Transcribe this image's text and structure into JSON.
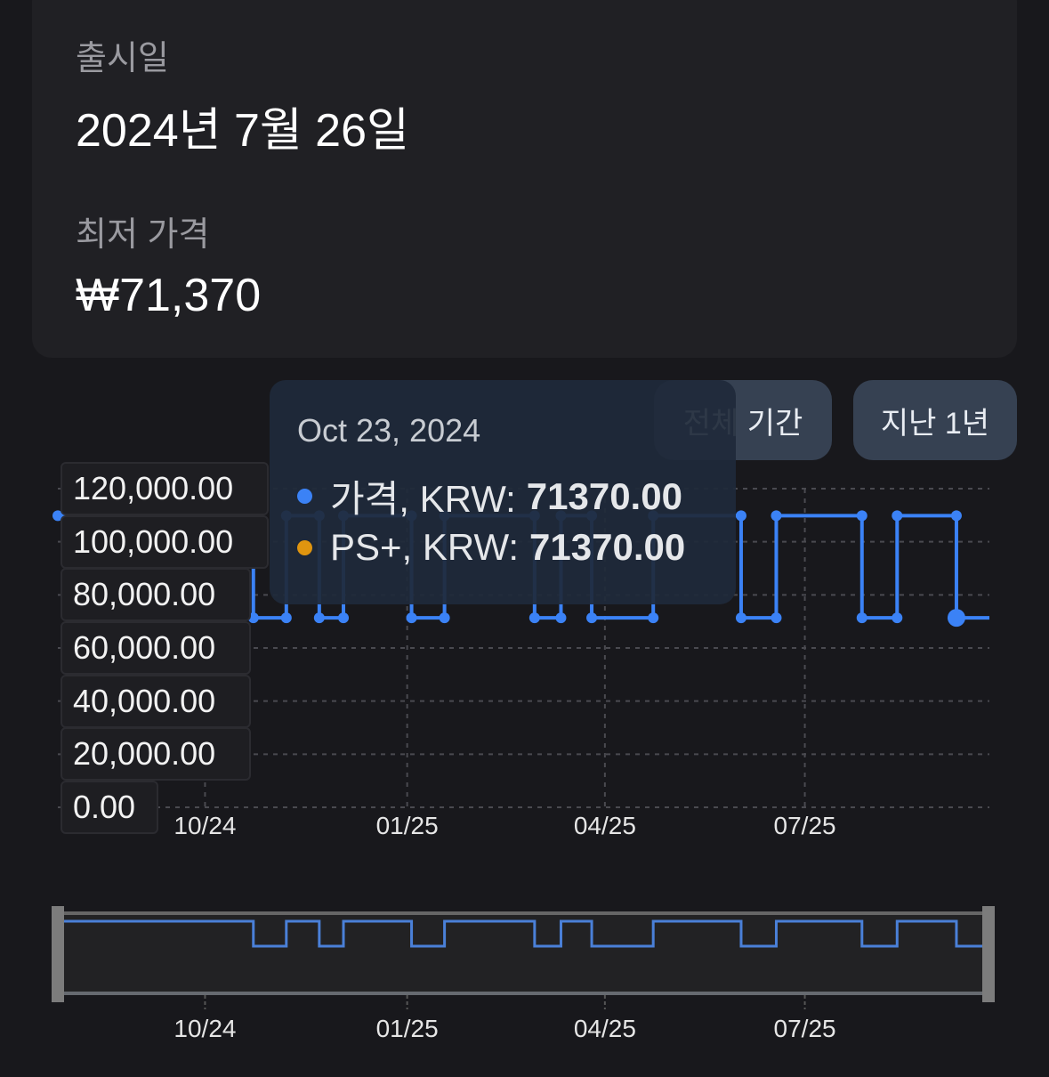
{
  "info": {
    "release_label": "출시일",
    "release_value": "2024년 7월 26일",
    "lowest_label": "최저 가격",
    "lowest_value": "₩71,370"
  },
  "range_buttons": {
    "all": "전체 기간",
    "last_year": "지난 1년"
  },
  "tooltip": {
    "date": "Oct 23, 2024",
    "rows": [
      {
        "name": "가격, KRW:",
        "value": "71370.00",
        "color": "#3b82f6"
      },
      {
        "name": "PS+, KRW:",
        "value": "71370.00",
        "color": "#e0950f"
      }
    ]
  },
  "chart_data": {
    "type": "line",
    "step": true,
    "grid": true,
    "y_ticks": [
      "120,000.00",
      "100,000.00",
      "80,000.00",
      "60,000.00",
      "40,000.00",
      "20,000.00",
      "0.00"
    ],
    "ylim": [
      0,
      120000
    ],
    "x_ticks": [
      "10/24",
      "01/25",
      "04/25",
      "07/25"
    ],
    "xlim": [
      "2024-07-26",
      "2025-09-23"
    ],
    "line_color": "#3b82f6",
    "series": [
      {
        "name": "가격",
        "points": [
          [
            "2024-07-26",
            109800
          ],
          [
            "2024-10-23",
            71370
          ],
          [
            "2024-11-07",
            109800
          ],
          [
            "2024-11-22",
            71370
          ],
          [
            "2024-12-03",
            109800
          ],
          [
            "2025-01-03",
            71370
          ],
          [
            "2025-01-18",
            109800
          ],
          [
            "2025-02-28",
            71370
          ],
          [
            "2025-03-12",
            109800
          ],
          [
            "2025-03-26",
            71370
          ],
          [
            "2025-04-23",
            109800
          ],
          [
            "2025-06-02",
            71370
          ],
          [
            "2025-06-18",
            109800
          ],
          [
            "2025-07-27",
            71370
          ],
          [
            "2025-08-12",
            109800
          ],
          [
            "2025-09-08",
            71370
          ],
          [
            "2025-09-23",
            71370
          ]
        ]
      }
    ]
  }
}
